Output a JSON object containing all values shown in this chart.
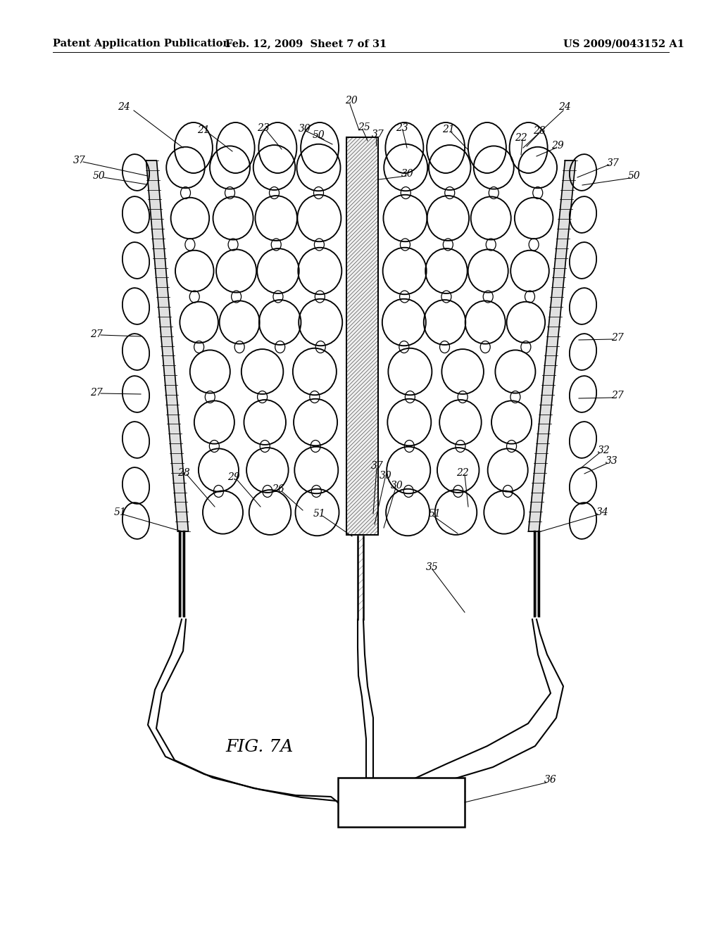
{
  "bg_color": "#ffffff",
  "header_left": "Patent Application Publication",
  "header_mid": "Feb. 12, 2009  Sheet 7 of 31",
  "header_right": "US 2009/0043152 A1",
  "fig_label": "FIG. 7A",
  "header_fontsize": 10.5,
  "fig_label_fontsize": 18,
  "line_color": "#000000"
}
